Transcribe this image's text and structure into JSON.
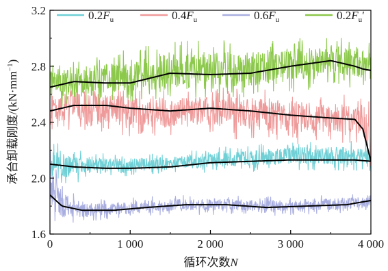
{
  "chart_data": {
    "type": "line",
    "xlabel": "循环次数",
    "xlabel_var": "N",
    "ylabel": "承台卸载刚度/(kN·mm",
    "ylabel_sup": "−1",
    "ylabel_close": ")",
    "xlim": [
      0,
      4000
    ],
    "ylim": [
      1.6,
      3.2
    ],
    "xticks": [
      0,
      1000,
      2000,
      3000,
      4000
    ],
    "xtick_labels": [
      "0",
      "1 000",
      "2 000",
      "3 000",
      "4 000"
    ],
    "yticks": [
      1.6,
      2.0,
      2.4,
      2.8,
      3.2
    ],
    "ytick_labels": [
      "1.6",
      "2.0",
      "2.4",
      "2.8",
      "3.2"
    ],
    "grid": false,
    "legend_position": "top",
    "series": [
      {
        "name": "0.2F_u",
        "legend_main": "0.2",
        "legend_var": "F",
        "legend_sub": "u",
        "legend_prime": "",
        "color": "#6fd0d6",
        "trend_x": [
          0,
          300,
          700,
          1000,
          1500,
          2000,
          2500,
          3000,
          3500,
          3800,
          4000
        ],
        "trend_y": [
          2.1,
          2.08,
          2.07,
          2.07,
          2.08,
          2.11,
          2.12,
          2.13,
          2.13,
          2.13,
          2.12
        ],
        "band_low": [
          1.98,
          2.02,
          2.03,
          2.05,
          2.06,
          2.08,
          2.09,
          2.1,
          2.1,
          2.09,
          2.08
        ],
        "band_high": [
          2.2,
          2.16,
          2.14,
          2.14,
          2.15,
          2.18,
          2.2,
          2.22,
          2.22,
          2.22,
          2.2
        ]
      },
      {
        "name": "0.4F_u",
        "legend_main": "0.4",
        "legend_var": "F",
        "legend_sub": "u",
        "legend_prime": "",
        "color": "#ef9a9a",
        "trend_x": [
          0,
          300,
          700,
          1000,
          1500,
          2000,
          2500,
          3000,
          3500,
          3800,
          3900,
          4000
        ],
        "trend_y": [
          2.48,
          2.52,
          2.52,
          2.5,
          2.48,
          2.5,
          2.48,
          2.45,
          2.43,
          2.42,
          2.35,
          2.12
        ],
        "band_low": [
          2.38,
          2.42,
          2.4,
          2.38,
          2.36,
          2.38,
          2.35,
          2.33,
          2.33,
          2.32,
          2.28,
          2.1
        ],
        "band_high": [
          2.56,
          2.6,
          2.6,
          2.58,
          2.57,
          2.58,
          2.57,
          2.55,
          2.53,
          2.52,
          2.5,
          2.46
        ]
      },
      {
        "name": "0.6F_u",
        "legend_main": "0.6",
        "legend_var": "F",
        "legend_sub": "u",
        "legend_prime": "",
        "color": "#a9aee0",
        "trend_x": [
          0,
          150,
          400,
          800,
          1200,
          1700,
          2200,
          2700,
          3200,
          3700,
          4000
        ],
        "trend_y": [
          1.88,
          1.8,
          1.77,
          1.77,
          1.79,
          1.81,
          1.81,
          1.79,
          1.8,
          1.81,
          1.84
        ],
        "band_low": [
          1.8,
          1.72,
          1.72,
          1.74,
          1.76,
          1.77,
          1.77,
          1.76,
          1.77,
          1.78,
          1.8
        ],
        "band_high": [
          2.1,
          1.9,
          1.82,
          1.82,
          1.84,
          1.85,
          1.85,
          1.84,
          1.85,
          1.86,
          1.86
        ]
      },
      {
        "name": "0.2F_u'",
        "legend_main": "0.2",
        "legend_var": "F",
        "legend_sub": "u",
        "legend_prime": "′",
        "color": "#8cc84b",
        "trend_x": [
          0,
          300,
          700,
          1000,
          1500,
          2000,
          2500,
          3000,
          3500,
          3800,
          3900,
          4000
        ],
        "trend_y": [
          2.65,
          2.69,
          2.68,
          2.68,
          2.75,
          2.74,
          2.75,
          2.8,
          2.84,
          2.8,
          2.78,
          2.77
        ],
        "band_low": [
          2.56,
          2.58,
          2.6,
          2.62,
          2.64,
          2.64,
          2.66,
          2.7,
          2.74,
          2.72,
          2.7,
          2.7
        ],
        "band_high": [
          2.76,
          2.8,
          2.82,
          2.84,
          2.9,
          2.9,
          2.9,
          2.92,
          2.94,
          2.92,
          2.92,
          2.92
        ]
      }
    ]
  }
}
